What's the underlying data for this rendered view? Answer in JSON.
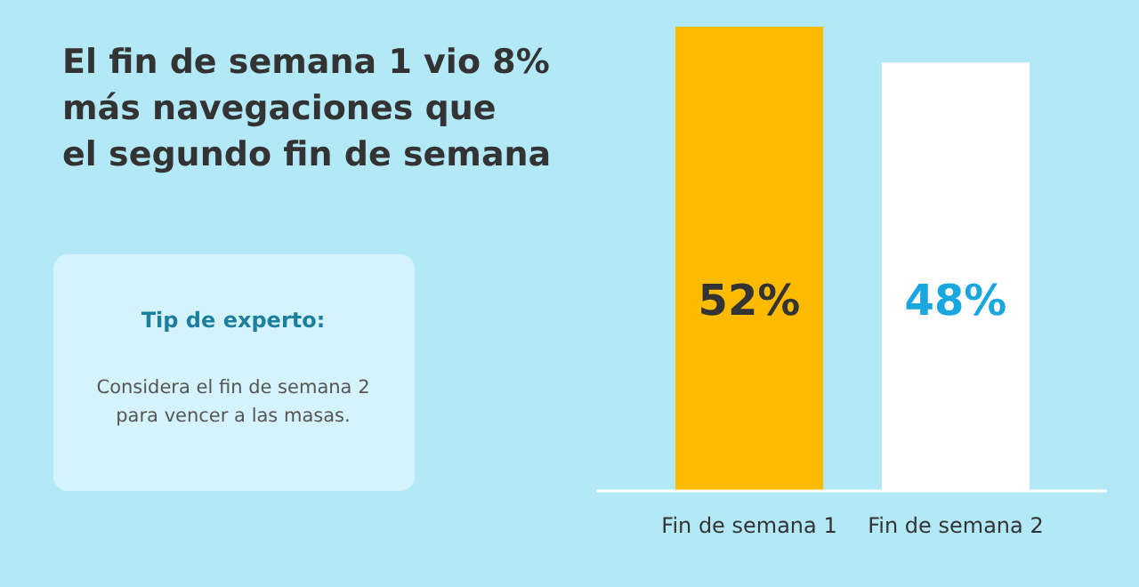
{
  "chart_data": {
    "type": "bar",
    "title": "El fin de semana 1 vio 8%\nmás navegaciones que\nel segundo fin de semana",
    "categories": [
      "Fin de semana 1",
      "Fin de semana 2"
    ],
    "values": [
      52,
      48
    ],
    "colors": [
      "#fdbb00",
      "#ffffff"
    ],
    "value_labels": [
      "52%",
      "48%"
    ],
    "ylim": [
      0,
      55
    ],
    "tick_labels": "x",
    "annotations": [
      "Tip de experto:",
      "Considera el fin de semana 2\npara vencer a las masas."
    ]
  }
}
